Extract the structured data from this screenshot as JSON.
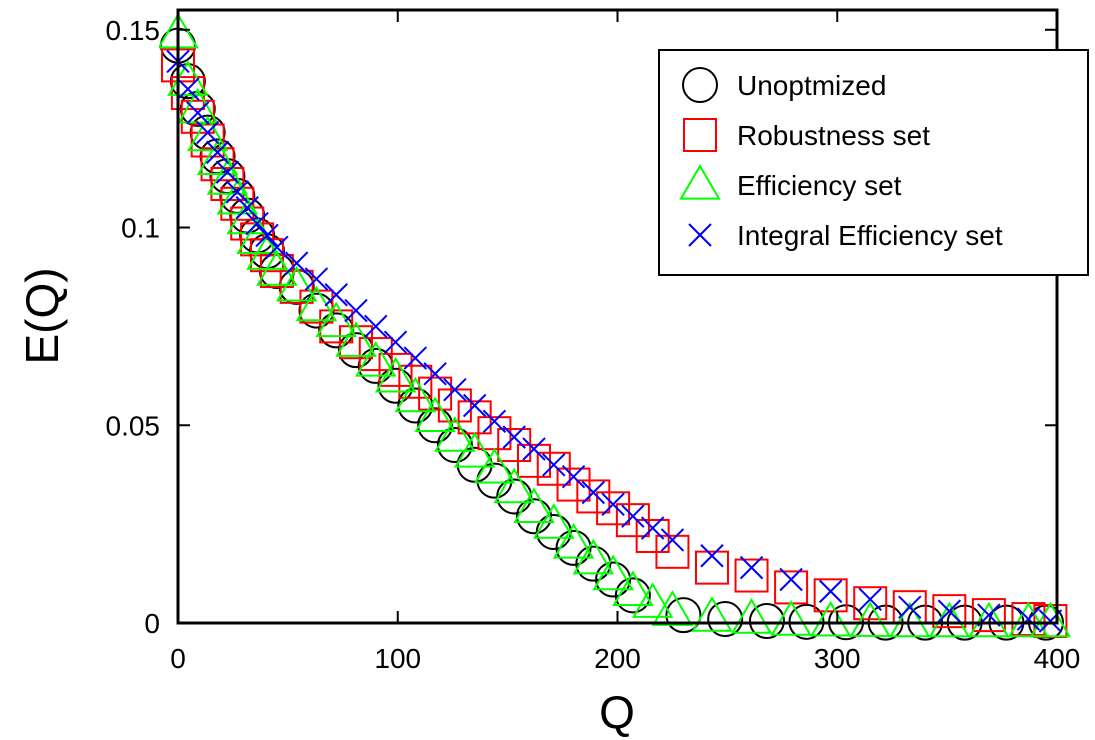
{
  "chart_data": {
    "type": "scatter",
    "xlabel": "Q",
    "ylabel": "E(Q)",
    "xlim": [
      0,
      400
    ],
    "ylim": [
      0,
      0.155
    ],
    "xticks": [
      0,
      100,
      200,
      300,
      400
    ],
    "xtick_labels": [
      "0",
      "100",
      "200",
      "300",
      "400"
    ],
    "yticks": [
      0,
      0.05,
      0.1,
      0.15
    ],
    "ytick_labels": [
      "0",
      "0.05",
      "0.1",
      "0.15"
    ],
    "grid": false,
    "legend_position": "top-right",
    "series": [
      {
        "name": "Unoptmized",
        "marker": "circle",
        "color": "#000000",
        "points": [
          [
            0,
            0.146
          ],
          [
            4.5,
            0.137
          ],
          [
            9,
            0.13
          ],
          [
            13.5,
            0.124
          ],
          [
            18,
            0.118
          ],
          [
            22.5,
            0.113
          ],
          [
            27,
            0.108
          ],
          [
            31.5,
            0.103
          ],
          [
            36,
            0.098
          ],
          [
            40.5,
            0.094
          ],
          [
            45,
            0.089
          ],
          [
            54,
            0.085
          ],
          [
            63,
            0.079
          ],
          [
            72,
            0.074
          ],
          [
            81,
            0.069
          ],
          [
            90,
            0.065
          ],
          [
            99,
            0.06
          ],
          [
            108,
            0.055
          ],
          [
            117,
            0.05
          ],
          [
            126,
            0.045
          ],
          [
            135,
            0.04
          ],
          [
            144,
            0.036
          ],
          [
            153,
            0.032
          ],
          [
            162,
            0.027
          ],
          [
            171,
            0.023
          ],
          [
            180,
            0.019
          ],
          [
            189,
            0.015
          ],
          [
            198,
            0.011
          ],
          [
            207,
            0.007
          ],
          [
            230,
            0.002
          ],
          [
            249,
            0.001
          ],
          [
            268,
            0.0005
          ],
          [
            286,
            0.0003
          ],
          [
            304,
            0.0002
          ],
          [
            322,
            0.0001
          ],
          [
            340,
            0.0001
          ],
          [
            358,
            0.0001
          ],
          [
            377,
            0.0001
          ],
          [
            395,
            0.0001
          ]
        ]
      },
      {
        "name": "Robustness set",
        "marker": "square",
        "color": "#ff0000",
        "points": [
          [
            0,
            0.141
          ],
          [
            4.5,
            0.134
          ],
          [
            9,
            0.128
          ],
          [
            13.5,
            0.122
          ],
          [
            18,
            0.116
          ],
          [
            22.5,
            0.111
          ],
          [
            27,
            0.106
          ],
          [
            31.5,
            0.101
          ],
          [
            36,
            0.097
          ],
          [
            40.5,
            0.093
          ],
          [
            45,
            0.089
          ],
          [
            54,
            0.085
          ],
          [
            63,
            0.08
          ],
          [
            72,
            0.075
          ],
          [
            81,
            0.071
          ],
          [
            90,
            0.068
          ],
          [
            99,
            0.064
          ],
          [
            108,
            0.061
          ],
          [
            117,
            0.058
          ],
          [
            126,
            0.055
          ],
          [
            135,
            0.052
          ],
          [
            144,
            0.048
          ],
          [
            153,
            0.045
          ],
          [
            162,
            0.041
          ],
          [
            171,
            0.039
          ],
          [
            180,
            0.035
          ],
          [
            189,
            0.032
          ],
          [
            198,
            0.029
          ],
          [
            207,
            0.026
          ],
          [
            216,
            0.022
          ],
          [
            225,
            0.018
          ],
          [
            243,
            0.014
          ],
          [
            261,
            0.012
          ],
          [
            279,
            0.009
          ],
          [
            297,
            0.007
          ],
          [
            315,
            0.005
          ],
          [
            333,
            0.004
          ],
          [
            351,
            0.003
          ],
          [
            369,
            0.002
          ],
          [
            387,
            0.001
          ],
          [
            397,
            0.0005
          ]
        ]
      },
      {
        "name": "Efficiency set",
        "marker": "triangle",
        "color": "#00ff00",
        "points": [
          [
            0,
            0.149
          ],
          [
            4.5,
            0.137
          ],
          [
            9,
            0.13
          ],
          [
            13.5,
            0.123
          ],
          [
            18,
            0.117
          ],
          [
            22.5,
            0.112
          ],
          [
            27,
            0.107
          ],
          [
            31.5,
            0.102
          ],
          [
            36,
            0.097
          ],
          [
            40.5,
            0.093
          ],
          [
            45,
            0.089
          ],
          [
            54,
            0.085
          ],
          [
            63,
            0.08
          ],
          [
            72,
            0.076
          ],
          [
            81,
            0.071
          ],
          [
            90,
            0.066
          ],
          [
            99,
            0.062
          ],
          [
            108,
            0.057
          ],
          [
            117,
            0.052
          ],
          [
            126,
            0.047
          ],
          [
            135,
            0.043
          ],
          [
            144,
            0.039
          ],
          [
            153,
            0.034
          ],
          [
            162,
            0.029
          ],
          [
            171,
            0.025
          ],
          [
            180,
            0.02
          ],
          [
            189,
            0.016
          ],
          [
            198,
            0.012
          ],
          [
            207,
            0.008
          ],
          [
            216,
            0.005
          ],
          [
            225,
            0.003
          ],
          [
            243,
            0.0015
          ],
          [
            261,
            0.001
          ],
          [
            279,
            0.0005
          ],
          [
            297,
            0.0003
          ],
          [
            315,
            0.0002
          ],
          [
            333,
            0.0001
          ],
          [
            351,
            0.0001
          ],
          [
            369,
            0.0001
          ],
          [
            387,
            0.0001
          ],
          [
            397,
            0.0001
          ]
        ]
      },
      {
        "name": "Integral Efficiency set",
        "marker": "x",
        "color": "#0000ff",
        "points": [
          [
            0,
            0.142
          ],
          [
            4.5,
            0.135
          ],
          [
            9,
            0.129
          ],
          [
            13.5,
            0.124
          ],
          [
            18,
            0.119
          ],
          [
            22.5,
            0.114
          ],
          [
            27,
            0.109
          ],
          [
            31.5,
            0.105
          ],
          [
            36,
            0.101
          ],
          [
            40.5,
            0.098
          ],
          [
            45,
            0.095
          ],
          [
            54,
            0.091
          ],
          [
            63,
            0.087
          ],
          [
            72,
            0.083
          ],
          [
            81,
            0.079
          ],
          [
            90,
            0.075
          ],
          [
            99,
            0.071
          ],
          [
            108,
            0.067
          ],
          [
            117,
            0.063
          ],
          [
            126,
            0.059
          ],
          [
            135,
            0.055
          ],
          [
            144,
            0.051
          ],
          [
            153,
            0.047
          ],
          [
            162,
            0.044
          ],
          [
            171,
            0.04
          ],
          [
            180,
            0.037
          ],
          [
            189,
            0.033
          ],
          [
            198,
            0.03
          ],
          [
            207,
            0.027
          ],
          [
            216,
            0.024
          ],
          [
            225,
            0.021
          ],
          [
            243,
            0.017
          ],
          [
            261,
            0.014
          ],
          [
            279,
            0.011
          ],
          [
            297,
            0.008
          ],
          [
            315,
            0.006
          ],
          [
            333,
            0.004
          ],
          [
            351,
            0.003
          ],
          [
            369,
            0.002
          ],
          [
            387,
            0.001
          ],
          [
            397,
            0.0005
          ]
        ]
      }
    ]
  }
}
